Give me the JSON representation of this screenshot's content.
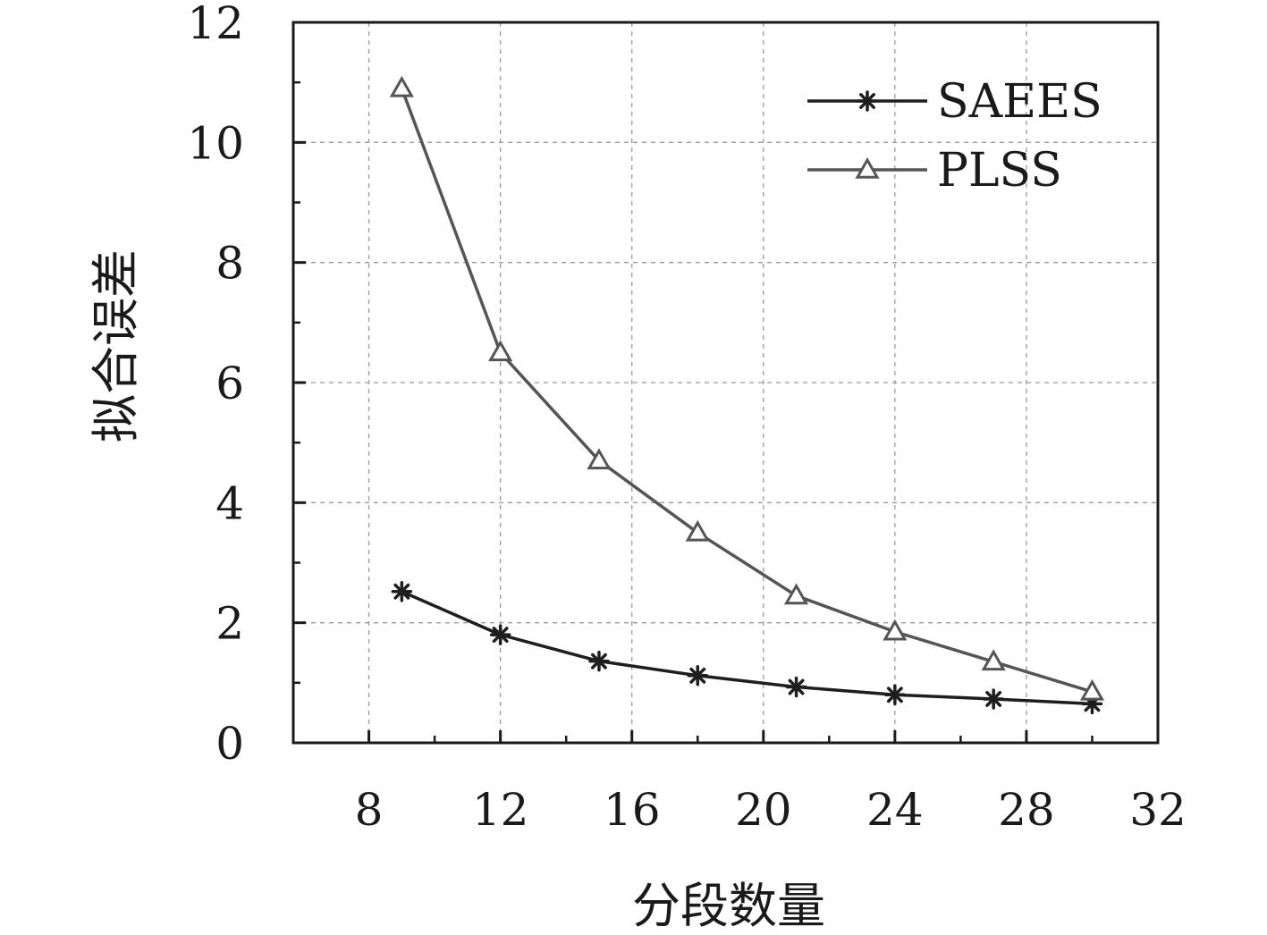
{
  "chart_data": {
    "type": "line",
    "xlabel": "分段数量",
    "ylabel": "拟合误差",
    "xlim": [
      5.7,
      32
    ],
    "ylim": [
      0,
      12
    ],
    "xticks": [
      8,
      12,
      16,
      20,
      24,
      28,
      32
    ],
    "yticks": [
      0,
      2,
      4,
      6,
      8,
      10,
      12
    ],
    "grid": true,
    "legend_position": "top-right",
    "x": [
      9,
      12,
      15,
      18,
      21,
      24,
      27,
      30
    ],
    "series": [
      {
        "name": "SAEES",
        "color": "#1e1e1e",
        "marker": "asterisk",
        "values": [
          2.52,
          1.8,
          1.36,
          1.12,
          0.93,
          0.8,
          0.73,
          0.65
        ]
      },
      {
        "name": "PLSS",
        "color": "#555555",
        "marker": "open-triangle",
        "values": [
          10.9,
          6.5,
          4.7,
          3.5,
          2.45,
          1.85,
          1.35,
          0.85
        ]
      }
    ]
  }
}
